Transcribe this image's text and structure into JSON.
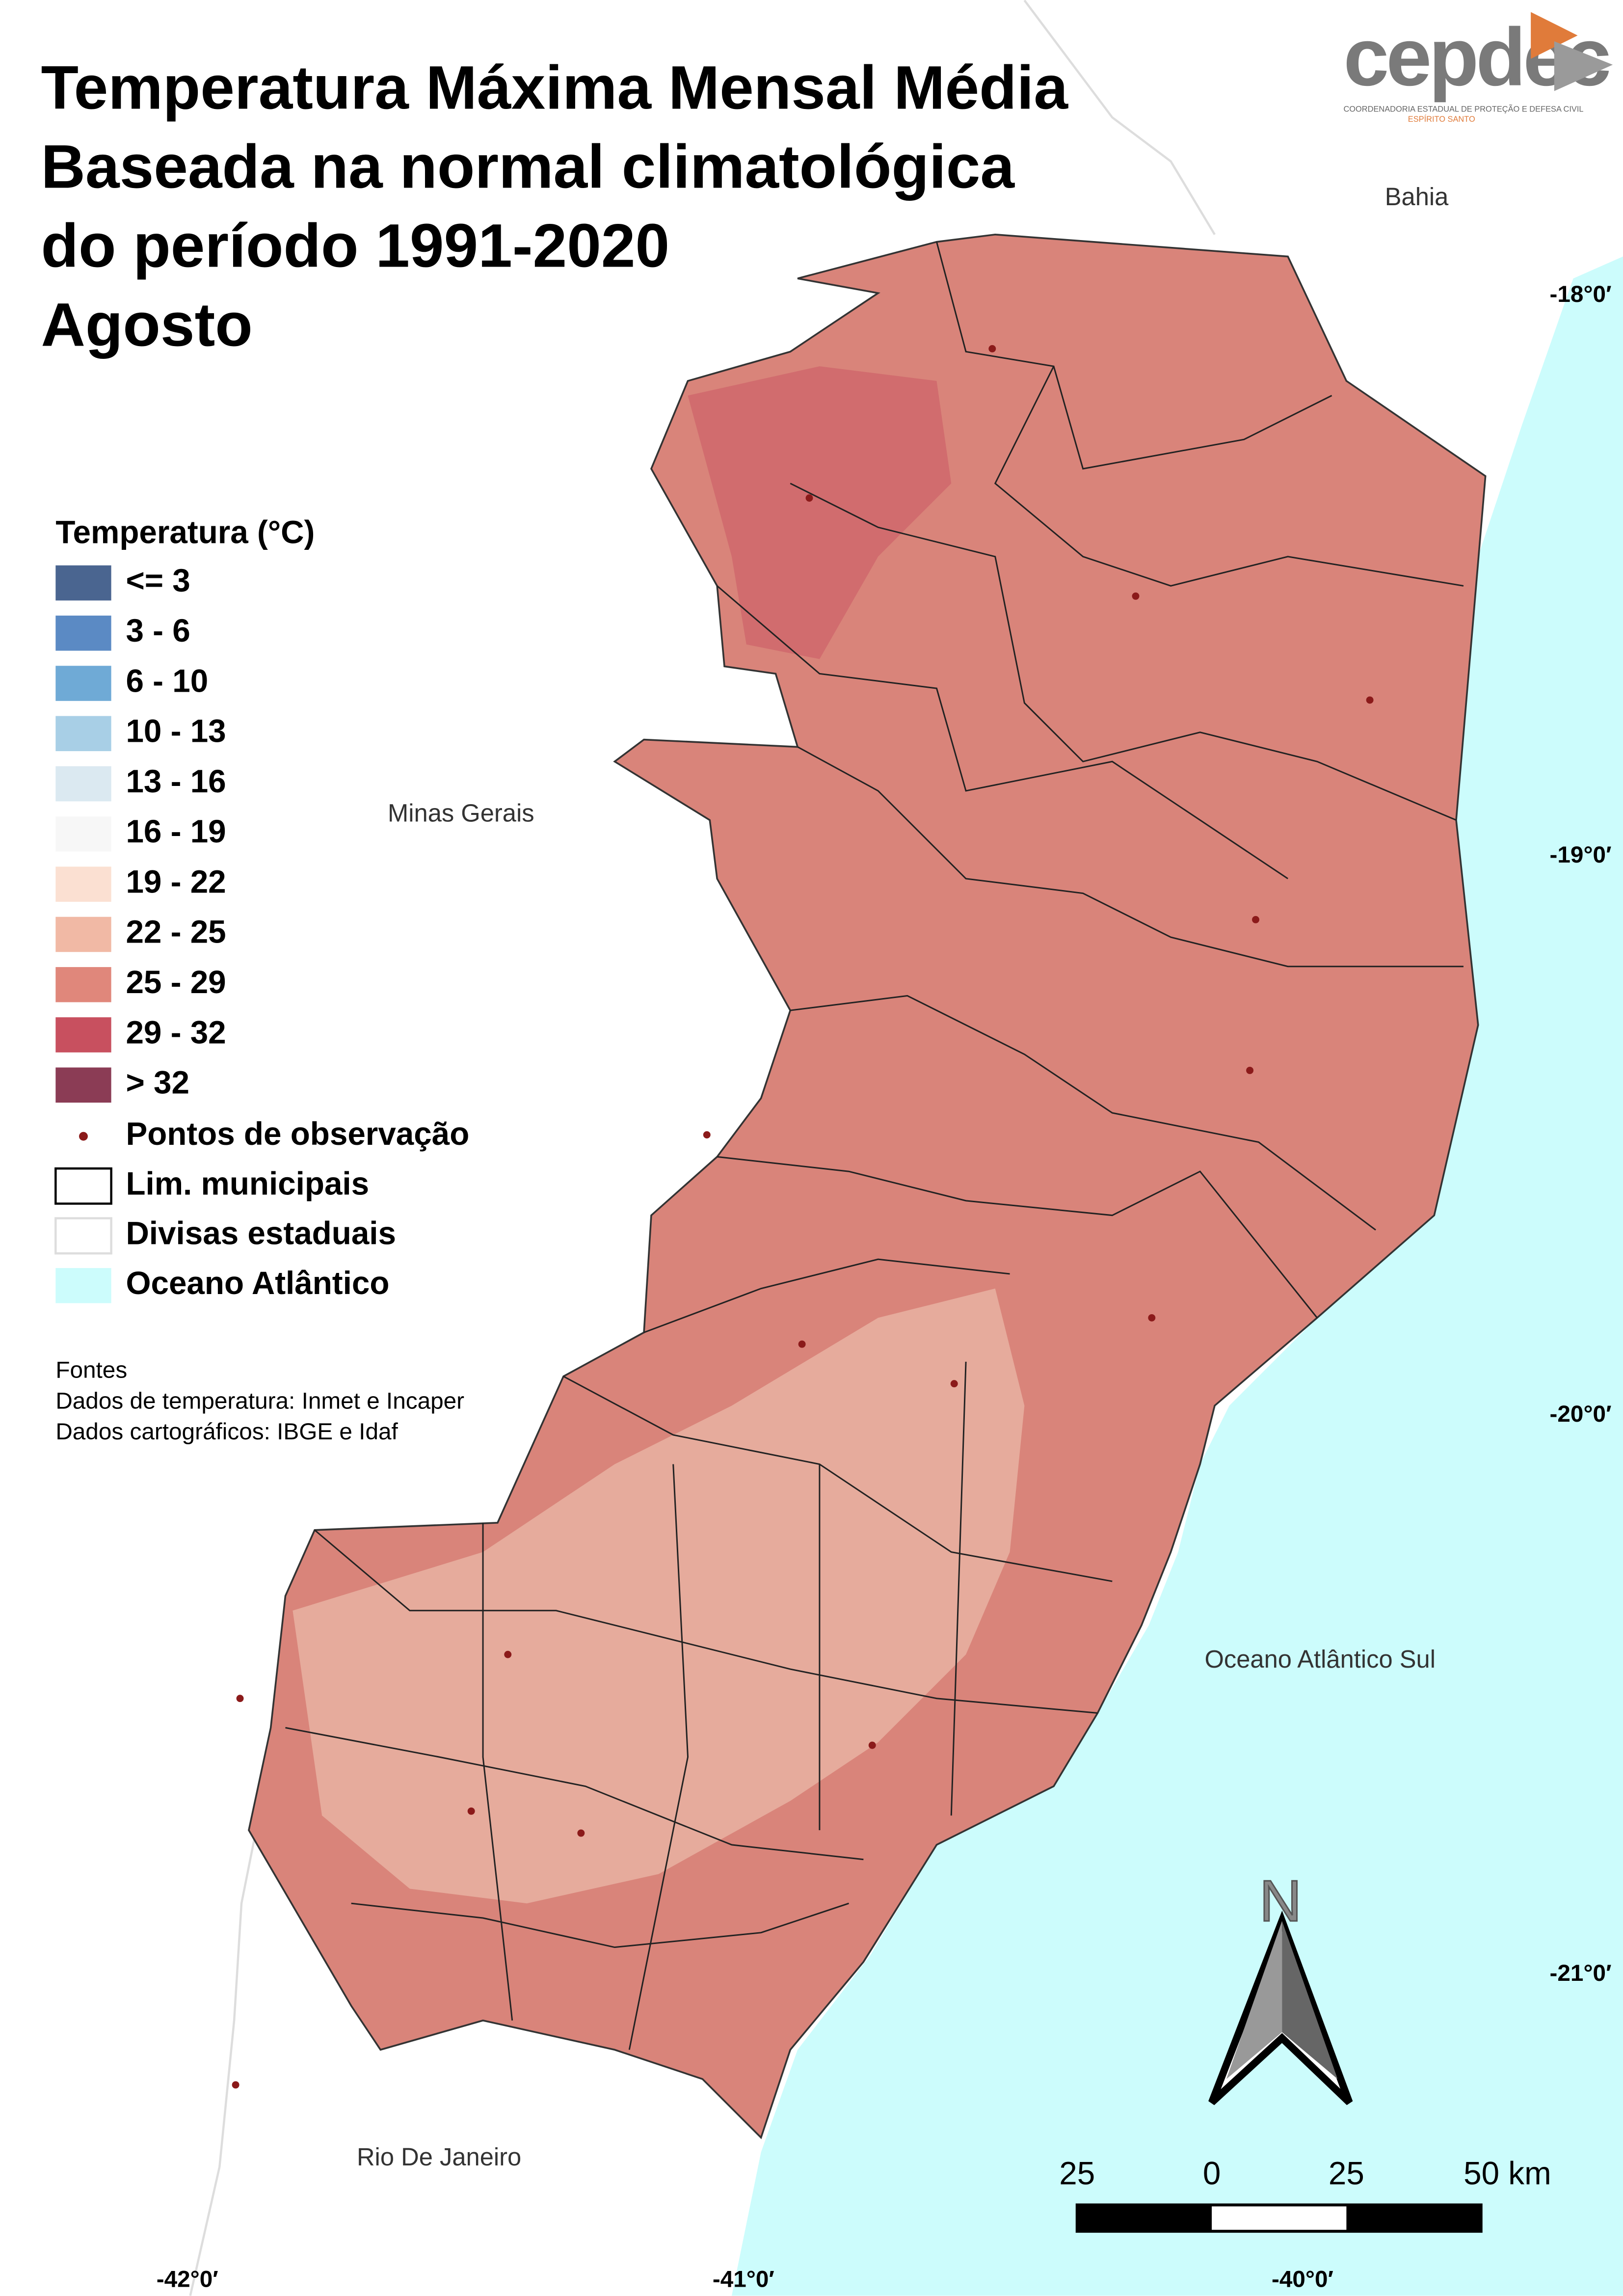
{
  "header": {
    "title_lines": [
      "Temperatura Máxima Mensal Média",
      "Baseada na normal climatológica",
      "do período 1991-2020",
      "Agosto"
    ]
  },
  "logo": {
    "name": "cepdec",
    "subtitle": "COORDENADORIA ESTADUAL DE PROTEÇÃO E DEFESA CIVIL",
    "region": "ESPÍRITO SANTO"
  },
  "legend": {
    "title": "Temperatura (°C)",
    "classes": [
      {
        "label": "<= 3",
        "color": "#4a6590"
      },
      {
        "label": "3 - 6",
        "color": "#5b8ac4"
      },
      {
        "label": "6 - 10",
        "color": "#6faad6"
      },
      {
        "label": "10 - 13",
        "color": "#a8cfe6"
      },
      {
        "label": "13 - 16",
        "color": "#dbe9f1"
      },
      {
        "label": "16 - 19",
        "color": "#f7f7f7"
      },
      {
        "label": "19 - 22",
        "color": "#fbe0d2"
      },
      {
        "label": "22 - 25",
        "color": "#f1b9a5"
      },
      {
        "label": "25 - 29",
        "color": "#e0877b"
      },
      {
        "label": "29 - 32",
        "color": "#c8505f"
      },
      {
        "label": "> 32",
        "color": "#8b3c55"
      }
    ],
    "symbols": [
      "Pontos de observação",
      "Lim. municipais",
      "Divisas estaduais",
      "Oceano Atlântico"
    ]
  },
  "sources": [
    "Fontes",
    "Dados de temperatura: Inmet e Incaper",
    "Dados cartográficos: IBGE e Idaf"
  ],
  "places": [
    "Bahia",
    "Minas Gerais",
    "Oceano Atlântico Sul",
    "Rio De Janeiro"
  ],
  "latitudes": [
    "-18°0′",
    "-19°0′",
    "-20°0′",
    "-21°0′"
  ],
  "longitudes": [
    "-42°0′",
    "-41°0′",
    "-40°0′"
  ],
  "north": "N",
  "scale": [
    "25",
    "0",
    "25",
    "50 km"
  ]
}
